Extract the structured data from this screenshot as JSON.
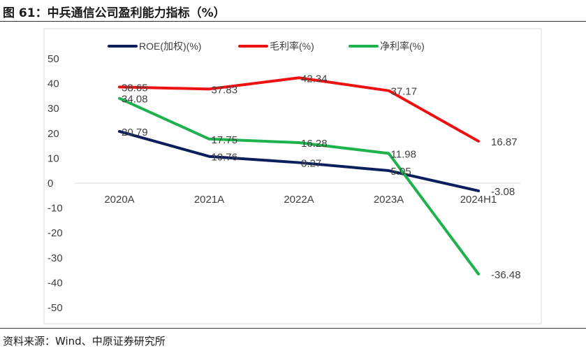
{
  "figure": {
    "title": "图 61：中兵通信公司盈利能力指标（%）",
    "source": "资料来源：Wind、中原证券研究所"
  },
  "chart_data": {
    "type": "line",
    "categories": [
      "2020A",
      "2021A",
      "2022A",
      "2023A",
      "2024H1"
    ],
    "ylim": [
      -50,
      50
    ],
    "yticks": [
      50,
      40,
      30,
      20,
      10,
      0,
      -10,
      -20,
      -30,
      -40,
      -50
    ],
    "grid": false,
    "legend_position": "top",
    "series": [
      {
        "name": "ROE(加权)(%)",
        "color": "#0b1f5c",
        "values": [
          20.79,
          10.76,
          8.27,
          5.05,
          -3.08
        ]
      },
      {
        "name": "毛利率(%)",
        "color": "#ee1111",
        "values": [
          38.65,
          37.83,
          42.34,
          37.17,
          16.87
        ]
      },
      {
        "name": "净利率(%)",
        "color": "#1db24b",
        "values": [
          34.08,
          17.75,
          16.28,
          11.98,
          -36.48
        ]
      }
    ]
  }
}
